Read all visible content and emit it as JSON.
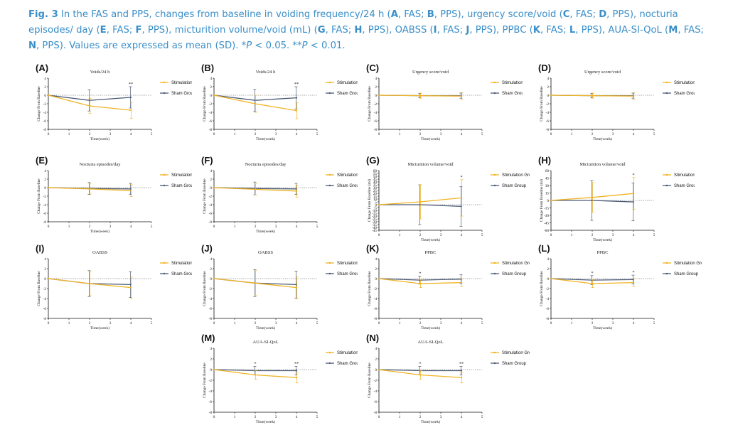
{
  "caption": {
    "fig": "Fig. 3",
    "segments": [
      {
        "t": " In the FAS and PPS, changes from baseline in voiding frequency/24 h (",
        "b": false
      },
      {
        "t": "A",
        "b": true
      },
      {
        "t": ", FAS; ",
        "b": false
      },
      {
        "t": "B",
        "b": true
      },
      {
        "t": ", PPS), urgency score/void (",
        "b": false
      },
      {
        "t": "C",
        "b": true
      },
      {
        "t": ", FAS; ",
        "b": false
      },
      {
        "t": "D",
        "b": true
      },
      {
        "t": ", PPS), nocturia episodes/ day (",
        "b": false
      },
      {
        "t": "E",
        "b": true
      },
      {
        "t": ", FAS; ",
        "b": false
      },
      {
        "t": "F",
        "b": true
      },
      {
        "t": ", PPS), micturition volume/void (mL) (",
        "b": false
      },
      {
        "t": "G",
        "b": true
      },
      {
        "t": ", FAS; ",
        "b": false
      },
      {
        "t": "H",
        "b": true
      },
      {
        "t": ", PPS), OABSS (",
        "b": false
      },
      {
        "t": "I",
        "b": true
      },
      {
        "t": ", FAS; ",
        "b": false
      },
      {
        "t": "J",
        "b": true
      },
      {
        "t": ", PPS), PPBC (",
        "b": false
      },
      {
        "t": "K",
        "b": true
      },
      {
        "t": ", FAS; ",
        "b": false
      },
      {
        "t": "L",
        "b": true
      },
      {
        "t": ", PPS), AUA-SI-QoL (",
        "b": false
      },
      {
        "t": "M",
        "b": true
      },
      {
        "t": ", FAS; ",
        "b": false
      },
      {
        "t": "N",
        "b": true
      },
      {
        "t": ", PPS). Values are expressed as mean (SD). *",
        "b": false
      },
      {
        "t": "P",
        "i": true
      },
      {
        "t": " < 0.05. **",
        "b": false
      },
      {
        "t": "P",
        "i": true
      },
      {
        "t": " < 0.01.",
        "b": false
      }
    ]
  },
  "colors": {
    "stimulation": "#f0b323",
    "sham": "#4a5a75",
    "caption": "#3a8fc9"
  },
  "legend": {
    "stim": "Stimulation Group",
    "sham": "Sham Group"
  },
  "chart_data": [
    {
      "id": "A",
      "title": "Voids/24 h",
      "type": "line",
      "xlabel": "Time(week)",
      "ylabel": "Change From Baseline",
      "xlim": [
        0,
        5
      ],
      "ylim": [
        -8,
        4
      ],
      "yticks": [
        -8,
        -6,
        -4,
        -2,
        0,
        2,
        4
      ],
      "series": [
        {
          "name": "Stimulation Group",
          "x": [
            0,
            2,
            4
          ],
          "y": [
            0,
            -2.5,
            -3.5
          ],
          "sd": [
            0,
            1.8,
            1.9
          ]
        },
        {
          "name": "Sham Group",
          "x": [
            0,
            2,
            4
          ],
          "y": [
            0,
            -1.2,
            -0.5
          ],
          "sd": [
            0,
            2.5,
            2.5
          ]
        }
      ],
      "annotations": [
        {
          "x": 4,
          "text": "**"
        }
      ]
    },
    {
      "id": "B",
      "title": "Voids/24 h",
      "type": "line",
      "xlabel": "Time(week)",
      "ylabel": "Change From Baseline",
      "xlim": [
        0,
        5
      ],
      "ylim": [
        -8,
        4
      ],
      "yticks": [
        -8,
        -6,
        -4,
        -2,
        0,
        2,
        4
      ],
      "series": [
        {
          "name": "Stimulation Group",
          "x": [
            0,
            2,
            4
          ],
          "y": [
            0,
            -2,
            -3.6
          ],
          "sd": [
            0,
            2,
            1.9
          ]
        },
        {
          "name": "Sham Group",
          "x": [
            0,
            2,
            4
          ],
          "y": [
            0,
            -1.2,
            -0.6
          ],
          "sd": [
            0,
            2.6,
            2.6
          ]
        }
      ],
      "annotations": [
        {
          "x": 4,
          "text": "**"
        }
      ]
    },
    {
      "id": "C",
      "title": "Urgency score/void",
      "type": "line",
      "xlabel": "Time(week)",
      "ylabel": "Change From Baseline",
      "xlim": [
        0,
        5
      ],
      "ylim": [
        -8,
        4
      ],
      "yticks": [
        -8,
        -6,
        -4,
        -2,
        0,
        2,
        4
      ],
      "series": [
        {
          "name": "Stimulation Group",
          "x": [
            0,
            2,
            4
          ],
          "y": [
            0,
            -0.1,
            -0.2
          ],
          "sd": [
            0,
            0.6,
            0.8
          ]
        },
        {
          "name": "Sham Group",
          "x": [
            0,
            2,
            4
          ],
          "y": [
            0,
            -0.1,
            -0.1
          ],
          "sd": [
            0,
            0.5,
            0.6
          ]
        }
      ],
      "annotations": []
    },
    {
      "id": "D",
      "title": "Urgency score/void",
      "type": "line",
      "xlabel": "Time(week)",
      "ylabel": "Change From Baseline",
      "xlim": [
        0,
        5
      ],
      "ylim": [
        -8,
        4
      ],
      "yticks": [
        -8,
        -6,
        -4,
        -2,
        0,
        2,
        4
      ],
      "series": [
        {
          "name": "Stimulation Group",
          "x": [
            0,
            2,
            4
          ],
          "y": [
            0,
            -0.1,
            -0.2
          ],
          "sd": [
            0,
            0.6,
            0.8
          ]
        },
        {
          "name": "Sham Group",
          "x": [
            0,
            2,
            4
          ],
          "y": [
            0,
            -0.1,
            -0.1
          ],
          "sd": [
            0,
            0.5,
            0.6
          ]
        }
      ],
      "annotations": []
    },
    {
      "id": "E",
      "title": "Nocturia episodes/day",
      "type": "line",
      "xlabel": "Time(week)",
      "ylabel": "Change From Baseline",
      "xlim": [
        0,
        5
      ],
      "ylim": [
        -8,
        4
      ],
      "yticks": [
        -8,
        -6,
        -4,
        -2,
        0,
        2,
        4
      ],
      "series": [
        {
          "name": "Stimulation Group",
          "x": [
            0,
            2,
            4
          ],
          "y": [
            0,
            -0.3,
            -0.7
          ],
          "sd": [
            0,
            1.2,
            1.4
          ]
        },
        {
          "name": "Sham Group",
          "x": [
            0,
            2,
            4
          ],
          "y": [
            0,
            -0.2,
            -0.3
          ],
          "sd": [
            0,
            1.4,
            1.3
          ]
        }
      ],
      "annotations": []
    },
    {
      "id": "F",
      "title": "Nocturia episodes/day",
      "type": "line",
      "xlabel": "Time(week)",
      "ylabel": "Change From Baseline",
      "xlim": [
        0,
        5
      ],
      "ylim": [
        -8,
        4
      ],
      "yticks": [
        -8,
        -6,
        -4,
        -2,
        0,
        2,
        4
      ],
      "series": [
        {
          "name": "Stimulation Group",
          "x": [
            0,
            2,
            4
          ],
          "y": [
            0,
            -0.4,
            -0.8
          ],
          "sd": [
            0,
            1.3,
            1.4
          ]
        },
        {
          "name": "Sham Group",
          "x": [
            0,
            2,
            4
          ],
          "y": [
            0,
            -0.2,
            -0.3
          ],
          "sd": [
            0,
            1.5,
            1.3
          ]
        }
      ],
      "annotations": []
    },
    {
      "id": "G",
      "title": "Micturition volume/void",
      "type": "line",
      "xlabel": "Time(week)",
      "ylabel": "Change From Baseline (ml)",
      "xlim": [
        0,
        5
      ],
      "ylim": [
        -45,
        60
      ],
      "yticks": [
        -45,
        -40,
        -35,
        -30,
        -25,
        -20,
        -15,
        -10,
        -5,
        0,
        5,
        10,
        15,
        20,
        25,
        30,
        35,
        40,
        45,
        50,
        55,
        60
      ],
      "series": [
        {
          "name": "Stimulation Group",
          "x": [
            0,
            2,
            4
          ],
          "y": [
            0,
            5,
            12
          ],
          "sd": [
            0,
            30,
            32
          ]
        },
        {
          "name": "Sham Group",
          "x": [
            0,
            2,
            4
          ],
          "y": [
            0,
            0,
            -3
          ],
          "sd": [
            0,
            35,
            35
          ]
        }
      ],
      "annotations": [
        {
          "x": 4,
          "text": "*"
        }
      ]
    },
    {
      "id": "H",
      "title": "Micturition volume/void",
      "type": "line",
      "xlabel": "Time(week)",
      "ylabel": "Change From Baseline (ml)",
      "xlim": [
        0,
        5
      ],
      "ylim": [
        -60,
        60
      ],
      "yticks": [
        -60,
        -45,
        -30,
        -15,
        0,
        15,
        30,
        45,
        60
      ],
      "series": [
        {
          "name": "Stimulation Group",
          "x": [
            0,
            2,
            4
          ],
          "y": [
            0,
            6,
            14
          ],
          "sd": [
            0,
            30,
            32
          ]
        },
        {
          "name": "Sham Group",
          "x": [
            0,
            2,
            4
          ],
          "y": [
            0,
            0,
            -3
          ],
          "sd": [
            0,
            40,
            38
          ]
        }
      ],
      "annotations": [
        {
          "x": 4,
          "text": "*"
        }
      ]
    },
    {
      "id": "I",
      "title": "OABSS",
      "type": "line",
      "xlabel": "Time(week)",
      "ylabel": "Change From Baseline",
      "xlim": [
        0,
        5
      ],
      "ylim": [
        -8,
        4
      ],
      "yticks": [
        -8,
        -6,
        -4,
        -2,
        0,
        2,
        4
      ],
      "series": [
        {
          "name": "Stimulation Group",
          "x": [
            0,
            2,
            4
          ],
          "y": [
            0,
            -1,
            -1.8
          ],
          "sd": [
            0,
            2.4,
            2.1
          ]
        },
        {
          "name": "Sham Group",
          "x": [
            0,
            2,
            4
          ],
          "y": [
            0,
            -1,
            -1.2
          ],
          "sd": [
            0,
            2.6,
            2.6
          ]
        }
      ],
      "annotations": []
    },
    {
      "id": "J",
      "title": "OABSS",
      "type": "line",
      "xlabel": "Time(week)",
      "ylabel": "Change From Baseline",
      "xlim": [
        0,
        5
      ],
      "ylim": [
        -8,
        4
      ],
      "yticks": [
        -8,
        -6,
        -4,
        -2,
        0,
        2,
        4
      ],
      "series": [
        {
          "name": "Stimulation Group",
          "x": [
            0,
            2,
            4
          ],
          "y": [
            0,
            -0.9,
            -1.8
          ],
          "sd": [
            0,
            2.5,
            2.2
          ]
        },
        {
          "name": "Sham Group",
          "x": [
            0,
            2,
            4
          ],
          "y": [
            0,
            -0.9,
            -1.2
          ],
          "sd": [
            0,
            2.7,
            2.7
          ]
        }
      ],
      "annotations": []
    },
    {
      "id": "K",
      "title": "PPBC",
      "type": "line",
      "xlabel": "Time(week)",
      "ylabel": "Change From Baseline",
      "xlim": [
        0,
        5
      ],
      "ylim": [
        -8,
        4
      ],
      "yticks": [
        -8,
        -6,
        -4,
        -2,
        0,
        2,
        4
      ],
      "series": [
        {
          "name": "Stimulation Group",
          "x": [
            0,
            2,
            4
          ],
          "y": [
            0,
            -1,
            -0.8
          ],
          "sd": [
            0,
            0.8,
            0.8
          ]
        },
        {
          "name": "Sham Group",
          "x": [
            0,
            2,
            4
          ],
          "y": [
            0,
            -0.3,
            -0.1
          ],
          "sd": [
            0,
            0.8,
            0.9
          ]
        }
      ],
      "annotations": [
        {
          "x": 2,
          "text": "*"
        }
      ]
    },
    {
      "id": "L",
      "title": "PPBC",
      "type": "line",
      "xlabel": "Time(week)",
      "ylabel": "Change From Baseline",
      "xlim": [
        0,
        5
      ],
      "ylim": [
        -8,
        4
      ],
      "yticks": [
        -8,
        -6,
        -4,
        -2,
        0,
        2,
        4
      ],
      "series": [
        {
          "name": "Stimulation Group",
          "x": [
            0,
            2,
            4
          ],
          "y": [
            0,
            -1,
            -0.8
          ],
          "sd": [
            0,
            0.8,
            0.8
          ]
        },
        {
          "name": "Sham Group",
          "x": [
            0,
            2,
            4
          ],
          "y": [
            0,
            -0.3,
            -0.2
          ],
          "sd": [
            0,
            0.9,
            0.9
          ]
        }
      ],
      "annotations": [
        {
          "x": 2,
          "text": "*"
        },
        {
          "x": 4,
          "text": "*"
        }
      ]
    },
    {
      "id": "M",
      "title": "AUA-SI-QoL",
      "type": "line",
      "xlabel": "Time(week)",
      "ylabel": "Change From Baseline",
      "xlim": [
        0,
        5
      ],
      "ylim": [
        -8,
        4
      ],
      "yticks": [
        -8,
        -6,
        -4,
        -2,
        0,
        2,
        4
      ],
      "series": [
        {
          "name": "Stimulation Group",
          "x": [
            0,
            2,
            4
          ],
          "y": [
            0,
            -1,
            -1.5
          ],
          "sd": [
            0,
            0.8,
            1
          ]
        },
        {
          "name": "Sham Group",
          "x": [
            0,
            2,
            4
          ],
          "y": [
            0,
            -0.2,
            -0.2
          ],
          "sd": [
            0,
            0.8,
            0.8
          ]
        }
      ],
      "annotations": [
        {
          "x": 2,
          "text": "*"
        },
        {
          "x": 4,
          "text": "**"
        }
      ]
    },
    {
      "id": "N",
      "title": "AUA-SI-QoL",
      "type": "line",
      "xlabel": "Time(week)",
      "ylabel": "Change From Baseline",
      "xlim": [
        0,
        5
      ],
      "ylim": [
        -8,
        4
      ],
      "yticks": [
        -8,
        -6,
        -4,
        -2,
        0,
        2,
        4
      ],
      "series": [
        {
          "name": "Stimulation Group",
          "x": [
            0,
            2,
            4
          ],
          "y": [
            0,
            -1,
            -1.5
          ],
          "sd": [
            0,
            0.8,
            1
          ]
        },
        {
          "name": "Sham Group",
          "x": [
            0,
            2,
            4
          ],
          "y": [
            0,
            -0.2,
            -0.2
          ],
          "sd": [
            0,
            0.8,
            0.8
          ]
        }
      ],
      "annotations": [
        {
          "x": 2,
          "text": "*"
        },
        {
          "x": 4,
          "text": "**"
        }
      ]
    }
  ]
}
